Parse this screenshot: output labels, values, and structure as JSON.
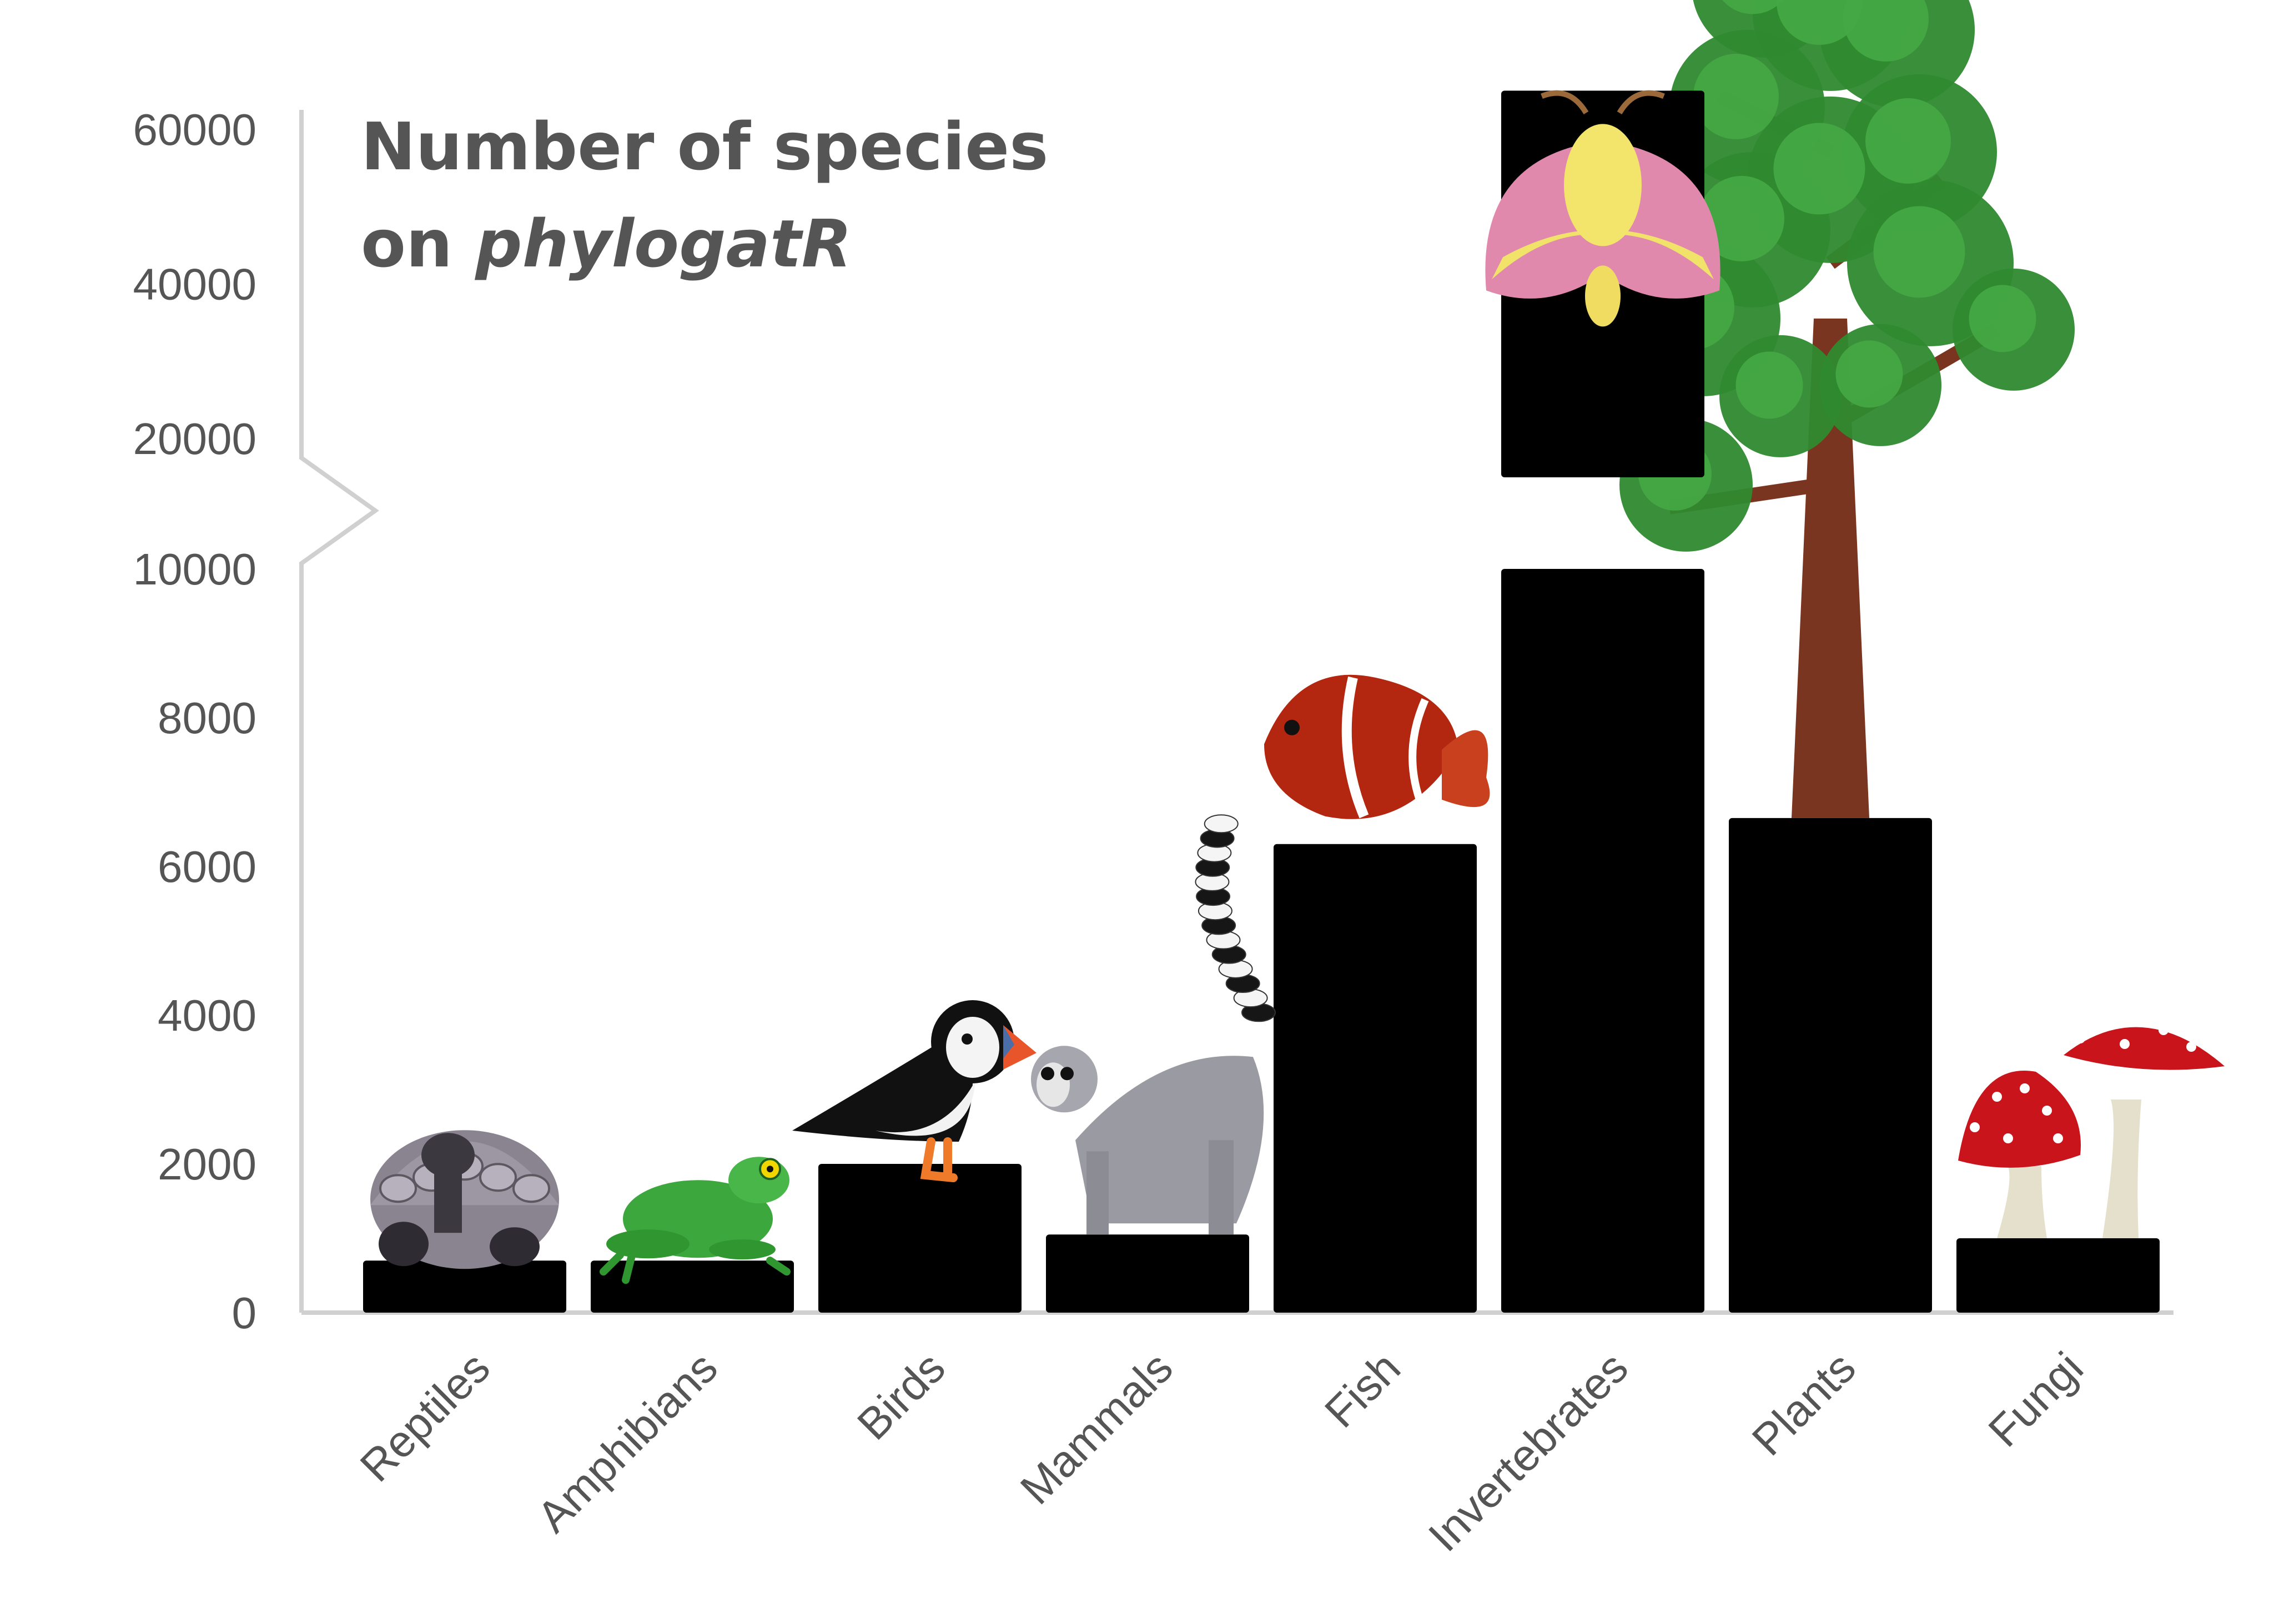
{
  "chart_data": {
    "type": "bar",
    "title_line1": "Number of species",
    "title_line2_prefix": "on ",
    "title_line2_italic": "phylogatR",
    "categories": [
      "Reptiles",
      "Amphibians",
      "Birds",
      "Mammals",
      "Fish",
      "Invertebrates",
      "Plants",
      "Fungi"
    ],
    "values": [
      700,
      700,
      2000,
      1050,
      6300,
      65000,
      6650,
      1000
    ],
    "y_ticks": [
      "0",
      "2000",
      "4000",
      "6000",
      "8000",
      "10000",
      "20000",
      "40000",
      "60000"
    ],
    "y_scale": "broken",
    "y_lower_range": [
      0,
      10000
    ],
    "y_upper_range": [
      20000,
      60000
    ],
    "grid": false,
    "legend": "none",
    "bar_color": "#000000",
    "axis_color": "#d0d0d0",
    "text_color": "#555555",
    "illustrations": [
      "tortoise-icon",
      "frog-icon",
      "puffin-icon",
      "lemur-icon",
      "clownfish-icon",
      "moth-icon",
      "tree-icon",
      "mushroom-icon"
    ]
  }
}
